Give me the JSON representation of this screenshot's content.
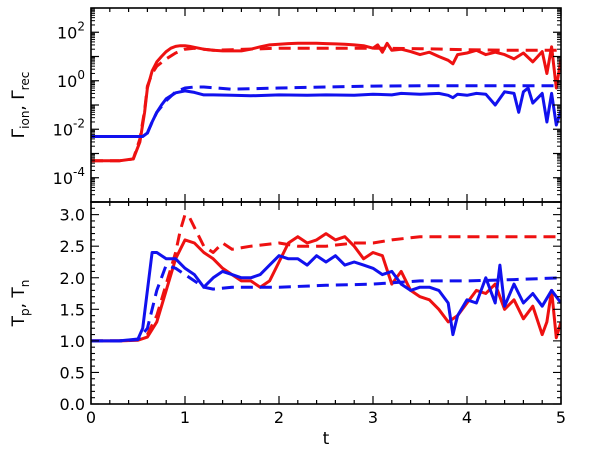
{
  "chart_data": [
    {
      "type": "line",
      "ylabel_parts": [
        "Γ",
        "ion",
        ", Γ",
        "rec"
      ],
      "yscale": "log",
      "xlim": [
        0,
        5
      ],
      "ylim_log10": [
        -5,
        3
      ],
      "yticks": [
        {
          "base": "10",
          "exp": "2",
          "value": 100
        },
        {
          "base": "10",
          "exp": "0",
          "value": 1
        },
        {
          "base": "10",
          "exp": "-2",
          "value": 0.01
        },
        {
          "base": "10",
          "exp": "-4",
          "value": 0.0001
        }
      ],
      "xticks": [],
      "grid": false,
      "series": [
        {
          "color": "#ee1111",
          "style": "solid",
          "x": [
            0,
            0.3,
            0.45,
            0.52,
            0.57,
            0.6,
            0.65,
            0.7,
            0.75,
            0.8,
            0.85,
            0.9,
            0.95,
            1.0,
            1.05,
            1.1,
            1.2,
            1.3,
            1.4,
            1.5,
            1.6,
            1.7,
            1.8,
            1.9,
            2.0,
            2.1,
            2.2,
            2.3,
            2.4,
            2.5,
            2.6,
            2.7,
            2.8,
            2.9,
            3.0,
            3.05,
            3.1,
            3.15,
            3.2,
            3.3,
            3.4,
            3.5,
            3.6,
            3.7,
            3.8,
            3.85,
            3.9,
            4.0,
            4.1,
            4.2,
            4.3,
            4.4,
            4.5,
            4.6,
            4.7,
            4.8,
            4.85,
            4.9,
            4.95,
            5.0
          ],
          "y": [
            0.0005,
            0.0005,
            0.0006,
            0.003,
            0.05,
            0.5,
            2.5,
            6,
            10,
            16,
            22,
            26,
            28,
            28,
            26,
            24,
            20,
            18,
            17,
            17,
            17,
            20,
            25,
            30,
            32,
            34,
            35,
            35,
            35,
            34,
            33,
            32,
            30,
            28,
            22,
            30,
            15,
            35,
            18,
            20,
            16,
            12,
            15,
            10,
            7,
            5,
            12,
            14,
            18,
            12,
            15,
            12,
            8,
            14,
            6,
            16,
            2,
            25,
            0.5,
            8
          ]
        },
        {
          "color": "#ee1111",
          "style": "dashed",
          "x": [
            0,
            0.3,
            0.45,
            0.52,
            0.57,
            0.6,
            0.65,
            0.7,
            0.8,
            0.9,
            1.0,
            1.1,
            1.2,
            1.3,
            1.5,
            2.0,
            2.5,
            3.0,
            3.5,
            4.0,
            4.5,
            5.0
          ],
          "y": [
            0.0005,
            0.0005,
            0.0006,
            0.004,
            0.06,
            0.6,
            2.0,
            4.0,
            8.0,
            14,
            20,
            22,
            20,
            18,
            19,
            22,
            22,
            22,
            21,
            19,
            18,
            18
          ]
        },
        {
          "color": "#1111ee",
          "style": "solid",
          "x": [
            0,
            0.3,
            0.5,
            0.55,
            0.6,
            0.65,
            0.7,
            0.75,
            0.8,
            0.9,
            1.0,
            1.1,
            1.2,
            1.3,
            1.5,
            1.7,
            2.0,
            2.3,
            2.5,
            2.8,
            3.0,
            3.2,
            3.3,
            3.5,
            3.7,
            3.8,
            3.85,
            3.9,
            4.0,
            4.1,
            4.2,
            4.3,
            4.4,
            4.5,
            4.55,
            4.6,
            4.65,
            4.7,
            4.8,
            4.85,
            4.9,
            4.95,
            5.0
          ],
          "y": [
            0.005,
            0.005,
            0.005,
            0.005,
            0.007,
            0.02,
            0.05,
            0.1,
            0.18,
            0.32,
            0.38,
            0.33,
            0.26,
            0.26,
            0.25,
            0.24,
            0.26,
            0.25,
            0.26,
            0.25,
            0.28,
            0.26,
            0.3,
            0.28,
            0.3,
            0.25,
            0.2,
            0.28,
            0.25,
            0.3,
            0.28,
            0.1,
            0.35,
            0.3,
            0.05,
            0.35,
            0.5,
            0.12,
            0.3,
            0.02,
            0.3,
            0.015,
            0.06
          ]
        },
        {
          "color": "#1111ee",
          "style": "dashed",
          "x": [
            0,
            0.3,
            0.5,
            0.55,
            0.6,
            0.65,
            0.7,
            0.8,
            0.9,
            1.0,
            1.1,
            1.2,
            1.5,
            2.0,
            2.5,
            3.0,
            3.5,
            4.0,
            4.5,
            5.0
          ],
          "y": [
            0.005,
            0.005,
            0.005,
            0.005,
            0.007,
            0.02,
            0.05,
            0.15,
            0.35,
            0.5,
            0.55,
            0.55,
            0.45,
            0.5,
            0.55,
            0.6,
            0.62,
            0.62,
            0.62,
            0.62
          ]
        }
      ]
    },
    {
      "type": "line",
      "ylabel_parts": [
        "T",
        "p",
        ", T",
        "n"
      ],
      "xlabel": "t",
      "xlim": [
        0,
        5
      ],
      "ylim": [
        0,
        3.2
      ],
      "yticks": [
        "0.0",
        "0.5",
        "1.0",
        "1.5",
        "2.0",
        "2.5",
        "3.0"
      ],
      "xticks": [
        "0",
        "1",
        "2",
        "3",
        "4",
        "5"
      ],
      "grid": false,
      "series": [
        {
          "color": "#ee1111",
          "style": "solid",
          "x": [
            0,
            0.3,
            0.5,
            0.6,
            0.7,
            0.8,
            0.9,
            1.0,
            1.1,
            1.2,
            1.3,
            1.4,
            1.5,
            1.6,
            1.7,
            1.8,
            1.9,
            2.0,
            2.1,
            2.2,
            2.3,
            2.4,
            2.5,
            2.6,
            2.7,
            2.8,
            2.9,
            3.0,
            3.1,
            3.2,
            3.3,
            3.4,
            3.5,
            3.6,
            3.7,
            3.8,
            3.9,
            4.0,
            4.1,
            4.2,
            4.3,
            4.4,
            4.5,
            4.6,
            4.7,
            4.8,
            4.85,
            4.9,
            4.95,
            5.0
          ],
          "y": [
            1.0,
            1.0,
            1.01,
            1.06,
            1.3,
            1.8,
            2.3,
            2.6,
            2.55,
            2.4,
            2.3,
            2.15,
            2.05,
            1.95,
            1.95,
            1.85,
            1.95,
            2.25,
            2.55,
            2.65,
            2.55,
            2.6,
            2.7,
            2.6,
            2.65,
            2.5,
            2.3,
            2.4,
            2.35,
            1.9,
            2.1,
            1.8,
            1.7,
            1.65,
            1.5,
            1.3,
            1.4,
            1.6,
            1.8,
            1.75,
            1.9,
            1.5,
            1.65,
            1.35,
            1.55,
            1.1,
            1.3,
            1.8,
            1.05,
            1.3
          ]
        },
        {
          "color": "#ee1111",
          "style": "dashed",
          "x": [
            0,
            0.3,
            0.5,
            0.6,
            0.7,
            0.8,
            0.9,
            0.95,
            1.0,
            1.05,
            1.1,
            1.2,
            1.3,
            1.4,
            1.5,
            1.7,
            2.0,
            2.2,
            2.5,
            2.8,
            3.0,
            3.2,
            3.5,
            4.0,
            4.5,
            5.0
          ],
          "y": [
            1.0,
            1.0,
            1.02,
            1.1,
            1.4,
            1.9,
            2.4,
            2.75,
            3.0,
            2.95,
            2.8,
            2.5,
            2.4,
            2.55,
            2.45,
            2.5,
            2.55,
            2.5,
            2.5,
            2.55,
            2.55,
            2.6,
            2.65,
            2.65,
            2.65,
            2.65
          ]
        },
        {
          "color": "#1111ee",
          "style": "solid",
          "x": [
            0,
            0.3,
            0.5,
            0.55,
            0.6,
            0.65,
            0.7,
            0.8,
            0.9,
            1.0,
            1.1,
            1.2,
            1.3,
            1.4,
            1.5,
            1.6,
            1.7,
            1.8,
            1.9,
            2.0,
            2.1,
            2.2,
            2.3,
            2.4,
            2.5,
            2.6,
            2.7,
            2.8,
            2.9,
            3.0,
            3.1,
            3.2,
            3.3,
            3.4,
            3.5,
            3.6,
            3.7,
            3.8,
            3.85,
            3.9,
            4.0,
            4.1,
            4.2,
            4.3,
            4.35,
            4.4,
            4.5,
            4.6,
            4.7,
            4.8,
            4.9,
            5.0
          ],
          "y": [
            1.0,
            1.0,
            1.03,
            1.2,
            1.8,
            2.4,
            2.4,
            2.3,
            2.3,
            2.15,
            2.05,
            1.85,
            2.0,
            2.1,
            2.05,
            2.0,
            2.0,
            2.05,
            2.2,
            2.35,
            2.3,
            2.3,
            2.2,
            2.35,
            2.25,
            2.35,
            2.2,
            2.25,
            2.2,
            2.15,
            2.05,
            2.1,
            1.9,
            1.8,
            1.85,
            1.85,
            1.8,
            1.6,
            1.1,
            1.4,
            1.65,
            1.6,
            2.0,
            1.6,
            2.2,
            1.55,
            1.9,
            1.6,
            1.75,
            1.55,
            1.8,
            1.6
          ]
        },
        {
          "color": "#1111ee",
          "style": "dashed",
          "x": [
            0,
            0.3,
            0.5,
            0.6,
            0.7,
            0.8,
            0.9,
            1.0,
            1.1,
            1.2,
            1.3,
            1.5,
            2.0,
            2.5,
            3.0,
            3.5,
            4.0,
            4.5,
            5.0
          ],
          "y": [
            1.0,
            1.0,
            1.02,
            1.2,
            1.8,
            2.2,
            2.15,
            2.05,
            1.95,
            1.85,
            1.82,
            1.85,
            1.85,
            1.88,
            1.9,
            1.95,
            1.95,
            1.97,
            2.0
          ]
        }
      ]
    }
  ]
}
